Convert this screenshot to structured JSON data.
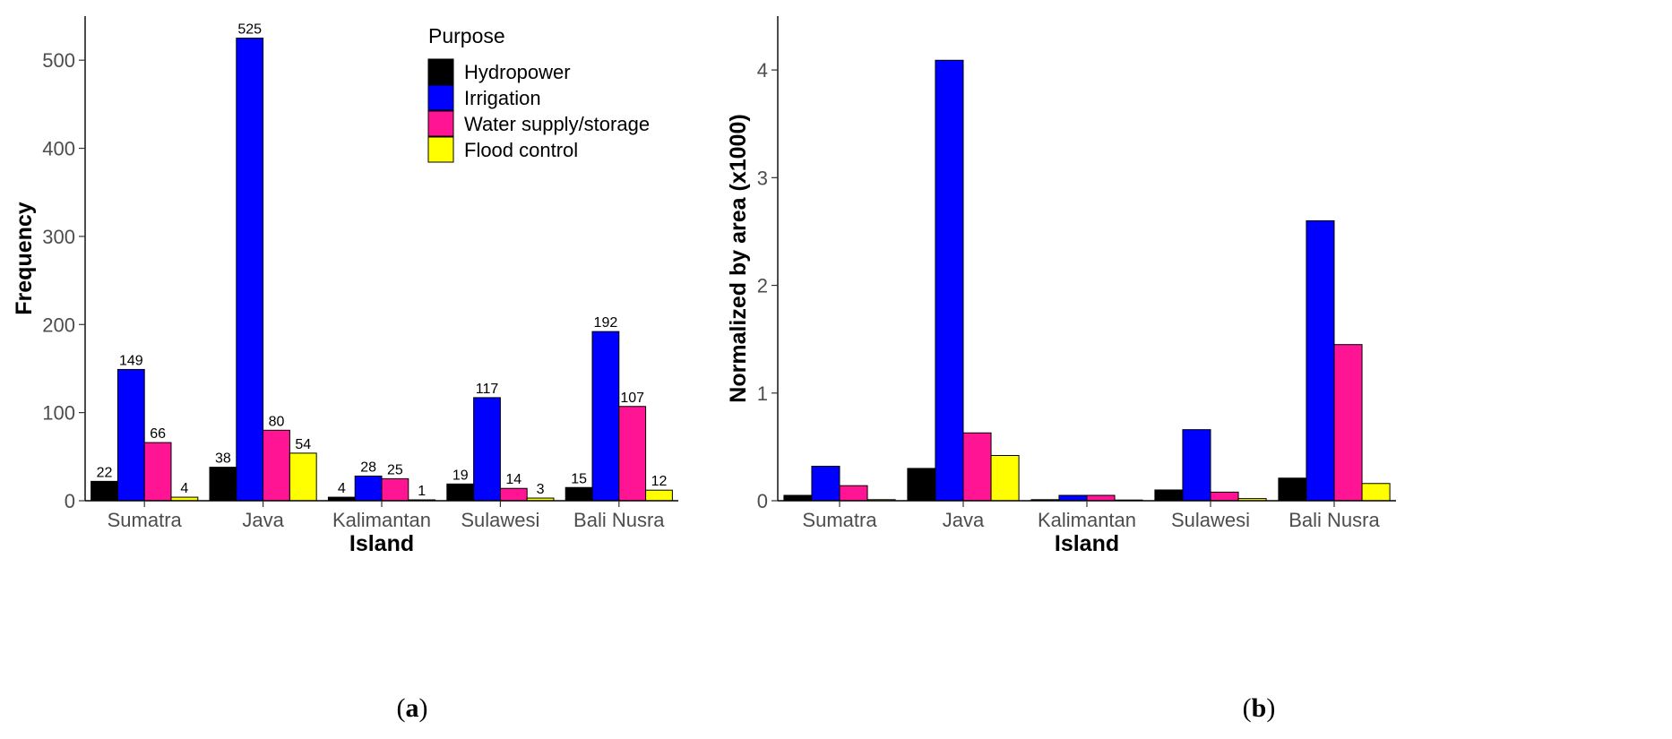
{
  "chart_data": [
    {
      "panel": "a",
      "type": "bar",
      "categories": [
        "Sumatra",
        "Java",
        "Kalimantan",
        "Sulawesi",
        "Bali Nusra"
      ],
      "xlabel": "Island",
      "ylabel": "Frequency",
      "ylim": [
        0,
        550
      ],
      "yticks": [
        "0",
        "100",
        "200",
        "300",
        "400",
        "500"
      ],
      "grid": false,
      "legend": {
        "title": "Purpose",
        "placement": "top-right",
        "entries": [
          "Hydropower",
          "Irrigation",
          "Water supply/storage",
          "Flood control"
        ]
      },
      "series": [
        {
          "name": "Hydropower",
          "color": "#000000",
          "values": [
            22,
            38,
            4,
            19,
            15
          ],
          "labels": [
            "22",
            "38",
            "4",
            "19",
            "15"
          ]
        },
        {
          "name": "Irrigation",
          "color": "#0000FF",
          "values": [
            149,
            525,
            28,
            117,
            192
          ],
          "labels": [
            "149",
            "525",
            "28",
            "117",
            "192"
          ]
        },
        {
          "name": "Water supply/storage",
          "color": "#FF1493",
          "values": [
            66,
            80,
            25,
            14,
            107
          ],
          "labels": [
            "66",
            "80",
            "25",
            "14",
            "107"
          ]
        },
        {
          "name": "Flood control",
          "color": "#FFFF00",
          "values": [
            4,
            54,
            1,
            3,
            12
          ],
          "labels": [
            "4",
            "54",
            "1",
            "3",
            "12"
          ]
        }
      ]
    },
    {
      "panel": "b",
      "type": "bar",
      "categories": [
        "Sumatra",
        "Java",
        "Kalimantan",
        "Sulawesi",
        "Bali Nusra"
      ],
      "xlabel": "Island",
      "ylabel": "Normalized by area (x1000)",
      "ylim": [
        0,
        4.5
      ],
      "yticks": [
        "0",
        "1",
        "2",
        "3",
        "4"
      ],
      "grid": false,
      "series": [
        {
          "name": "Hydropower",
          "color": "#000000",
          "values": [
            0.05,
            0.3,
            0.01,
            0.1,
            0.21
          ]
        },
        {
          "name": "Irrigation",
          "color": "#0000FF",
          "values": [
            0.32,
            4.09,
            0.05,
            0.66,
            2.6
          ]
        },
        {
          "name": "Water supply/storage",
          "color": "#FF1493",
          "values": [
            0.14,
            0.63,
            0.05,
            0.08,
            1.45
          ]
        },
        {
          "name": "Flood control",
          "color": "#FFFF00",
          "values": [
            0.01,
            0.42,
            0.0,
            0.02,
            0.16
          ]
        }
      ]
    }
  ],
  "captions": {
    "a": {
      "open": "(",
      "letter": "a",
      "close": ")"
    },
    "b": {
      "open": "(",
      "letter": "b",
      "close": ")"
    }
  }
}
